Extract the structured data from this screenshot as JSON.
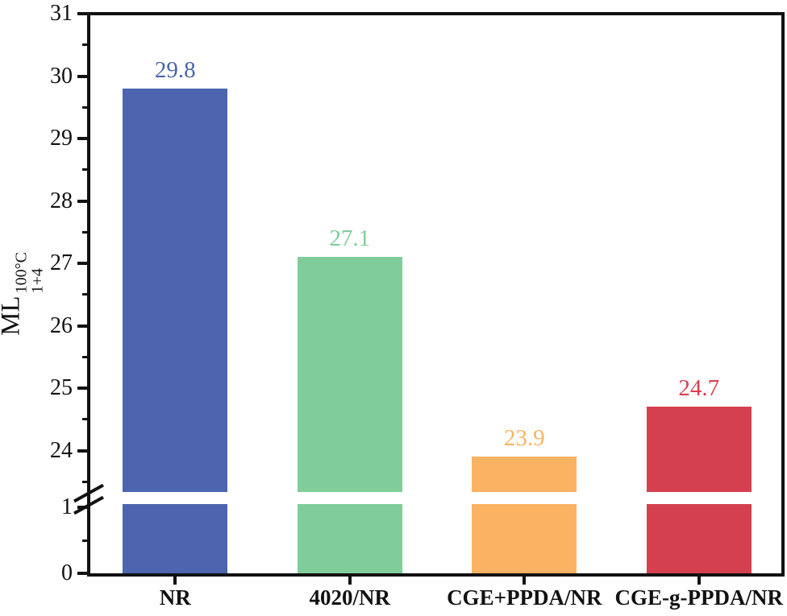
{
  "chart_data": {
    "type": "bar",
    "title": "",
    "categories": [
      "NR",
      "4020/NR",
      "CGE+PPDA/NR",
      "CGE-g-PPDA/NR"
    ],
    "values": [
      29.8,
      27.1,
      23.9,
      24.7
    ],
    "value_labels": [
      "29.8",
      "27.1",
      "23.9",
      "24.7"
    ],
    "bar_colors": [
      "#4C65AE",
      "#80CD9A",
      "#FAB363",
      "#D5404F"
    ],
    "xlabel": "",
    "ylabel_base": "ML",
    "ylabel_sup": "100°C",
    "ylabel_sub": "1+4",
    "y_axis": {
      "broken": true,
      "break_between": [
        1,
        24
      ],
      "lower_segment_range": [
        0,
        1
      ],
      "upper_segment_range": [
        24,
        31
      ],
      "major_ticks": [
        0,
        1,
        24,
        25,
        26,
        27,
        28,
        29,
        30,
        31
      ],
      "minor_ticks": [
        0.5,
        23.5,
        24.5,
        25.5,
        26.5,
        27.5,
        28.5,
        29.5,
        30.5
      ]
    },
    "grid": false,
    "legend": "none",
    "axis_color": "#111111",
    "background_color": "#ffffff"
  }
}
